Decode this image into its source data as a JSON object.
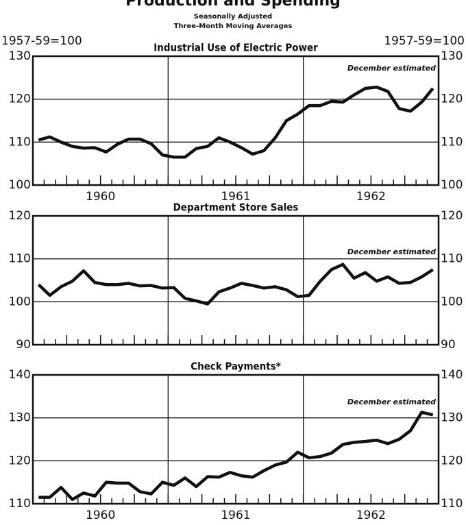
{
  "header": {
    "title": "Production and Spending",
    "subtitle": "Seasonally Adjusted",
    "subtitle2": "Three-Month Moving Averages",
    "y_label": "1957-59=100"
  },
  "chart_data": [
    {
      "type": "line",
      "title": "Industrial Use of Electric Power",
      "annotation": "December estimated",
      "x": [
        1960.042,
        1960.125,
        1960.208,
        1960.292,
        1960.375,
        1960.458,
        1960.542,
        1960.625,
        1960.708,
        1960.792,
        1960.875,
        1960.958,
        1961.042,
        1961.125,
        1961.208,
        1961.292,
        1961.375,
        1961.458,
        1961.542,
        1961.625,
        1961.708,
        1961.792,
        1961.875,
        1961.958,
        1962.042,
        1962.125,
        1962.208,
        1962.292,
        1962.375,
        1962.458,
        1962.542,
        1962.625,
        1962.708,
        1962.792,
        1962.875,
        1962.958
      ],
      "series": [
        {
          "color": "#111111",
          "values": [
            110.5,
            111.2,
            110,
            109,
            108.6,
            108.7,
            107.7,
            109.5,
            110.7,
            110.7,
            109.6,
            107,
            106.5,
            106.5,
            108.5,
            109,
            111,
            110,
            108.7,
            107.2,
            108,
            111,
            115,
            116.5,
            118.5,
            118.5,
            119.5,
            119.3,
            121,
            122.5,
            122.8,
            121.8,
            117.8,
            117.2,
            119.3,
            122.5
          ]
        }
      ],
      "xlim": [
        1960,
        1963
      ],
      "xticks": [
        {
          "value": 1960.5,
          "label": "1960"
        },
        {
          "value": 1961.5,
          "label": "1961"
        },
        {
          "value": 1962.5,
          "label": "1962"
        }
      ],
      "xgrid": [
        1961,
        1962
      ],
      "ylim": [
        100,
        130
      ],
      "yticks": [
        100,
        110,
        120,
        130
      ],
      "grid": true
    },
    {
      "type": "line",
      "title": "Department Store Sales",
      "annotation": "December estimated",
      "x": [
        1960.042,
        1960.125,
        1960.208,
        1960.292,
        1960.375,
        1960.458,
        1960.542,
        1960.625,
        1960.708,
        1960.792,
        1960.875,
        1960.958,
        1961.042,
        1961.125,
        1961.208,
        1961.292,
        1961.375,
        1961.458,
        1961.542,
        1961.625,
        1961.708,
        1961.792,
        1961.875,
        1961.958,
        1962.042,
        1962.125,
        1962.208,
        1962.292,
        1962.375,
        1962.458,
        1962.542,
        1962.625,
        1962.708,
        1962.792,
        1962.875,
        1962.958
      ],
      "series": [
        {
          "color": "#111111",
          "values": [
            104,
            101.5,
            103.5,
            104.8,
            107.2,
            104.5,
            104,
            104,
            104.3,
            103.7,
            103.8,
            103.2,
            103.3,
            100.8,
            100.2,
            99.5,
            102.3,
            103.2,
            104.3,
            103.8,
            103.2,
            103.5,
            102.8,
            101.2,
            101.5,
            104.8,
            107.5,
            108.7,
            105.5,
            106.8,
            104.8,
            105.8,
            104.3,
            104.5,
            105.8,
            107.5
          ]
        }
      ],
      "xlim": [
        1960,
        1963
      ],
      "xgrid": [
        1961,
        1962
      ],
      "ylim": [
        90,
        120
      ],
      "yticks": [
        90,
        100,
        110,
        120
      ],
      "grid": true
    },
    {
      "type": "line",
      "title": "Check Payments*",
      "annotation": "December estimated",
      "x": [
        1960.042,
        1960.125,
        1960.208,
        1960.292,
        1960.375,
        1960.458,
        1960.542,
        1960.625,
        1960.708,
        1960.792,
        1960.875,
        1960.958,
        1961.042,
        1961.125,
        1961.208,
        1961.292,
        1961.375,
        1961.458,
        1961.542,
        1961.625,
        1961.708,
        1961.792,
        1961.875,
        1961.958,
        1962.042,
        1962.125,
        1962.208,
        1962.292,
        1962.375,
        1962.458,
        1962.542,
        1962.625,
        1962.708,
        1962.792,
        1962.875,
        1962.958
      ],
      "series": [
        {
          "color": "#111111",
          "values": [
            111.5,
            111.5,
            113.8,
            111,
            112.5,
            111.8,
            115,
            114.8,
            114.8,
            112.8,
            112.3,
            115,
            114.3,
            116,
            114,
            116.3,
            116.2,
            117.3,
            116.5,
            116.2,
            117.7,
            119,
            119.7,
            122,
            120.7,
            121,
            121.8,
            123.8,
            124.3,
            124.5,
            124.8,
            124,
            125,
            127,
            131.3,
            130.7
          ]
        }
      ],
      "xlim": [
        1960,
        1963
      ],
      "xticks": [
        {
          "value": 1960.5,
          "label": "1960"
        },
        {
          "value": 1961.5,
          "label": "1961"
        },
        {
          "value": 1962.5,
          "label": "1962"
        }
      ],
      "xgrid": [
        1961,
        1962
      ],
      "ylim": [
        110,
        140
      ],
      "yticks": [
        110,
        120,
        130,
        140
      ],
      "grid": true
    }
  ]
}
